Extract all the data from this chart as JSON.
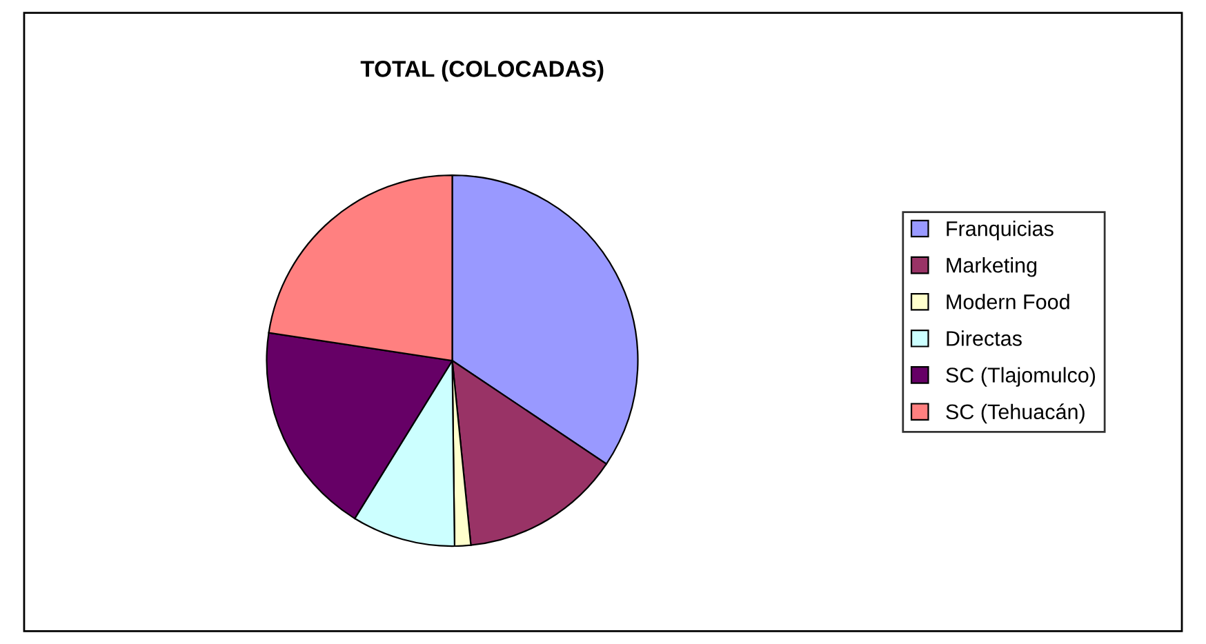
{
  "chart_data": {
    "type": "pie",
    "title": "TOTAL (COLOCADAS)",
    "categories": [
      "Franquicias",
      "Marketing",
      "Modern Food",
      "Directas",
      "SC (Tlajomulco)",
      "SC (Tehuacán)"
    ],
    "values": [
      34.4,
      14.0,
      1.4,
      9.0,
      18.6,
      22.6
    ],
    "colors": [
      "#9999ff",
      "#993366",
      "#ffffcc",
      "#ccffff",
      "#660066",
      "#ff8080"
    ],
    "legend": "right"
  }
}
